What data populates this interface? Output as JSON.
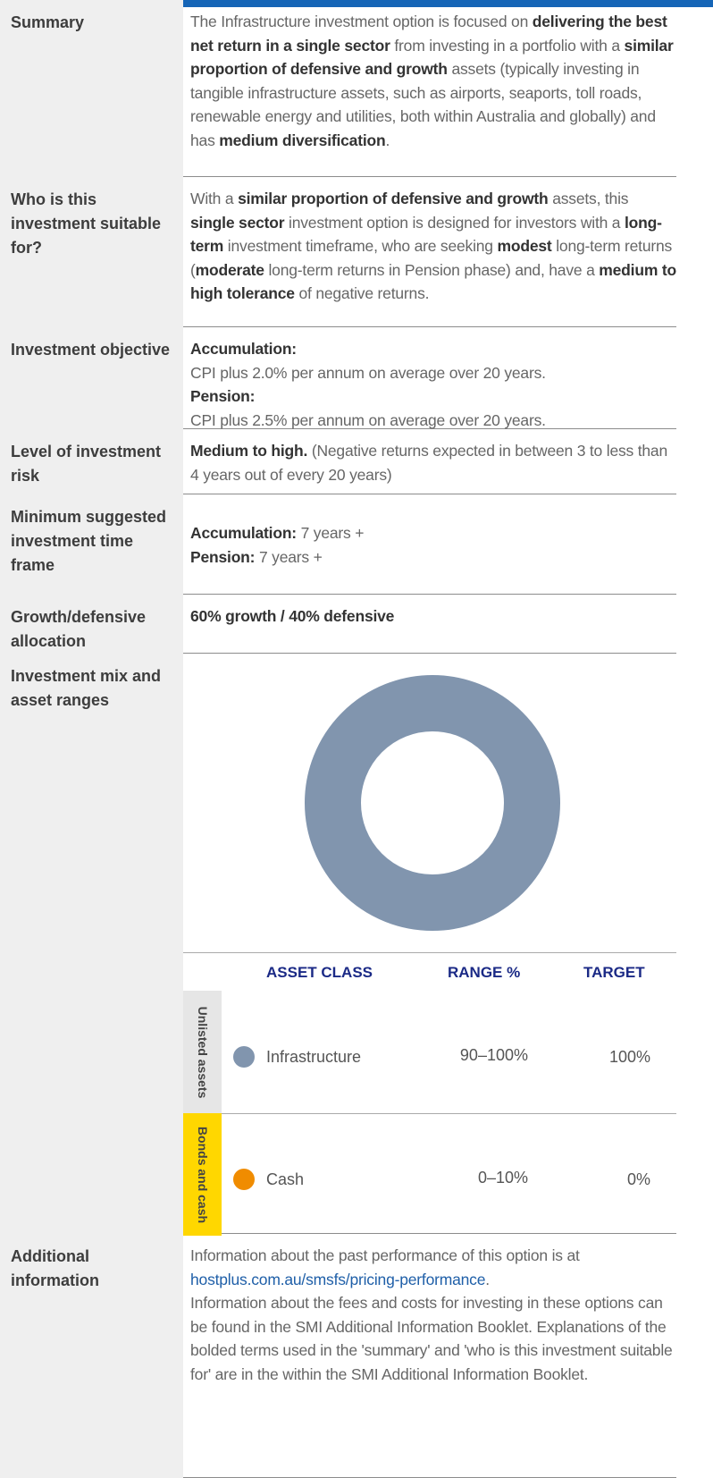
{
  "rows": [
    {
      "label": "Summary",
      "body": [
        [
          {
            "text": "The Infrastructure investment option is focused on "
          },
          {
            "text": "delivering the best net return in a single sector",
            "bold": true
          },
          {
            "text": " from investing in a portfolio with a "
          },
          {
            "text": "similar proportion of defensive and growth",
            "bold": true
          },
          {
            "text": " assets (typically investing in tangible infrastructure assets, such as airports, seaports, toll roads, renewable energy and utilities, both within Australia and globally) and has "
          },
          {
            "text": "medium diversification",
            "bold": true
          },
          {
            "text": "."
          }
        ]
      ]
    },
    {
      "label": "Who is this investment suitable for?",
      "body": [
        [
          {
            "text": "With a "
          },
          {
            "text": "similar proportion of defensive and growth",
            "bold": true
          },
          {
            "text": " assets, this "
          },
          {
            "text": "single sector",
            "bold": true
          },
          {
            "text": " investment option is designed for investors with a "
          },
          {
            "text": "long-term",
            "bold": true
          },
          {
            "text": " investment timeframe, who are seeking "
          },
          {
            "text": "modest",
            "bold": true
          },
          {
            "text": " long-term returns ("
          },
          {
            "text": "moderate",
            "bold": true
          },
          {
            "text": " long-term returns in Pension phase) and, have a "
          },
          {
            "text": "medium to high tolerance",
            "bold": true
          },
          {
            "text": " of negative returns."
          }
        ]
      ]
    },
    {
      "label": "Investment objective",
      "body": [
        [
          {
            "text": "Accumulation:",
            "bold": true
          }
        ],
        [
          {
            "text": "CPI plus 2.0% per annum on average over 20 years."
          }
        ],
        [
          {
            "text": "Pension:",
            "bold": true
          }
        ],
        [
          {
            "text": "CPI plus 2.5% per annum on average over 20 years."
          }
        ]
      ]
    },
    {
      "label": "Level of investment risk",
      "body": [
        [
          {
            "text": "Medium to high.",
            "bold": true
          },
          {
            "text": " (Negative returns expected in between 3 to less than 4 years out of every 20 years)"
          }
        ]
      ]
    },
    {
      "label": "Minimum suggested investment time frame",
      "body": [
        [
          {
            "text": "Accumulation:",
            "bold": true
          },
          {
            "text": " 7 years +"
          }
        ],
        [
          {
            "text": "Pension:",
            "bold": true
          },
          {
            "text": " 7 years +"
          }
        ]
      ]
    },
    {
      "label": "Growth/defensive allocation",
      "body": [
        [
          {
            "text": "60% growth / 40% defensive",
            "bold": true
          }
        ]
      ]
    },
    {
      "label": "Investment mix and asset ranges",
      "body": []
    },
    {
      "label": "Additional information",
      "body": [
        [
          {
            "text": "Information about the past performance of this option is at "
          },
          {
            "text": "hostplus.com.au/smsfs/pricing-performance",
            "link": true
          },
          {
            "text": "."
          }
        ],
        [
          {
            "text": "Information about the fees and costs for investing in these options can be found in the SMI Additional Information Booklet. Explanations of the bolded terms used in the 'summary' and 'who is this investment suitable for' are in the within the SMI Additional Information Booklet."
          }
        ]
      ]
    }
  ],
  "asset_table": {
    "headers": [
      "ASSET CLASS",
      "RANGE %",
      "TARGET"
    ],
    "groups": [
      {
        "name": "Unlisted assets",
        "color": "#e6e6e6",
        "asset": "Infrastructure",
        "range": "90–100%"
      },
      {
        "name": "Bonds and cash",
        "color": "#ffd700",
        "asset": "Cash",
        "range": "0–10%"
      }
    ]
  },
  "donut": {
    "type": "pie",
    "values": [
      100,
      0
    ],
    "value_labels": [
      "100%",
      "0%"
    ],
    "colors": [
      "#8195ae",
      "#f08c00"
    ]
  }
}
